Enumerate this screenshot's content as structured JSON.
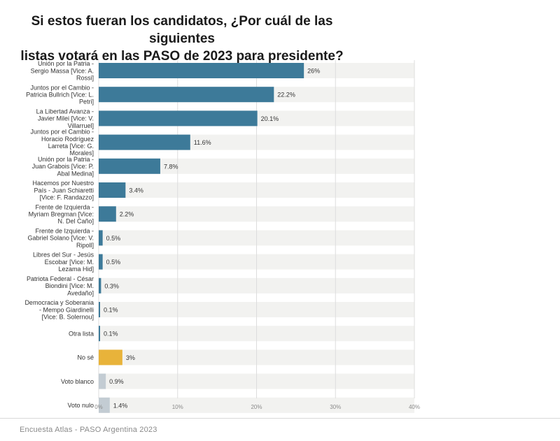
{
  "title_line1": "Si estos fueran los candidatos, ¿Por cuál de las siguientes",
  "title_line2": "listas votará en las PASO de 2023 para presidente?",
  "footer": "Encuesta Atlas - PASO Argentina 2023",
  "colors": {
    "primary": "#3d7a99",
    "highlight": "#e8b33a",
    "neutral": "#c3ccd3",
    "track": "#f2f2f0",
    "grid": "#dddddd"
  },
  "chart_data": {
    "type": "bar",
    "orientation": "horizontal",
    "title": "Si estos fueran los candidatos, ¿Por cuál de las siguientes listas votará en las PASO de 2023 para presidente?",
    "xlim": [
      0,
      40
    ],
    "ticks": [
      0,
      10,
      20,
      30,
      40
    ],
    "tick_labels": [
      "0%",
      "10%",
      "20%",
      "30%",
      "40%"
    ],
    "bars": [
      {
        "label": [
          "Unión por la Patria -",
          "Sergio Massa [Vice: A.",
          "Rossi]"
        ],
        "value": 26,
        "value_label": "26%",
        "category": "primary"
      },
      {
        "label": [
          "Juntos por el Cambio -",
          "Patricia Bullrich [Vice: L.",
          "Petri]"
        ],
        "value": 22.2,
        "value_label": "22.2%",
        "category": "primary"
      },
      {
        "label": [
          "La Libertad Avanza -",
          "Javier Milei [Vice: V.",
          "Villarruel]"
        ],
        "value": 20.1,
        "value_label": "20.1%",
        "category": "primary"
      },
      {
        "label": [
          "Juntos por el Cambio -",
          "Horacio Rodríguez",
          "Larreta [Vice: G.",
          "Morales]"
        ],
        "value": 11.6,
        "value_label": "11.6%",
        "category": "primary"
      },
      {
        "label": [
          "Unión por la Patria -",
          "Juan Grabois [Vice: P.",
          "Abal Medina]"
        ],
        "value": 7.8,
        "value_label": "7.8%",
        "category": "primary"
      },
      {
        "label": [
          "Hacemos por Nuestro",
          "País - Juan Schiaretti",
          "[Vice: F. Randazzo]"
        ],
        "value": 3.4,
        "value_label": "3.4%",
        "category": "primary"
      },
      {
        "label": [
          "Frente de Izquierda -",
          "Myriam Bregman [Vice:",
          "N. Del Caño]"
        ],
        "value": 2.2,
        "value_label": "2.2%",
        "category": "primary"
      },
      {
        "label": [
          "Frente de Izquierda -",
          "Gabriel Solano [Vice: V.",
          "Ripoll]"
        ],
        "value": 0.5,
        "value_label": "0.5%",
        "category": "primary"
      },
      {
        "label": [
          "Libres del Sur - Jesús",
          "Escobar [Vice: M.",
          "Lezama Hid]"
        ],
        "value": 0.5,
        "value_label": "0.5%",
        "category": "primary"
      },
      {
        "label": [
          "Patriota Federal - César",
          "Biondini [Vice: M.",
          "Avedaño]"
        ],
        "value": 0.3,
        "value_label": "0.3%",
        "category": "primary"
      },
      {
        "label": [
          "Democracia y Soberania",
          "- Mempo Giardinelli",
          "[Vice: B. Solernou]"
        ],
        "value": 0.1,
        "value_label": "0.1%",
        "category": "primary"
      },
      {
        "label": [
          "Otra lista"
        ],
        "value": 0.1,
        "value_label": "0.1%",
        "category": "primary"
      },
      {
        "label": [
          "No sé"
        ],
        "value": 3,
        "value_label": "3%",
        "category": "highlight"
      },
      {
        "label": [
          "Voto blanco"
        ],
        "value": 0.9,
        "value_label": "0.9%",
        "category": "neutral"
      },
      {
        "label": [
          "Voto nulo"
        ],
        "value": 1.4,
        "value_label": "1.4%",
        "category": "neutral"
      }
    ]
  }
}
